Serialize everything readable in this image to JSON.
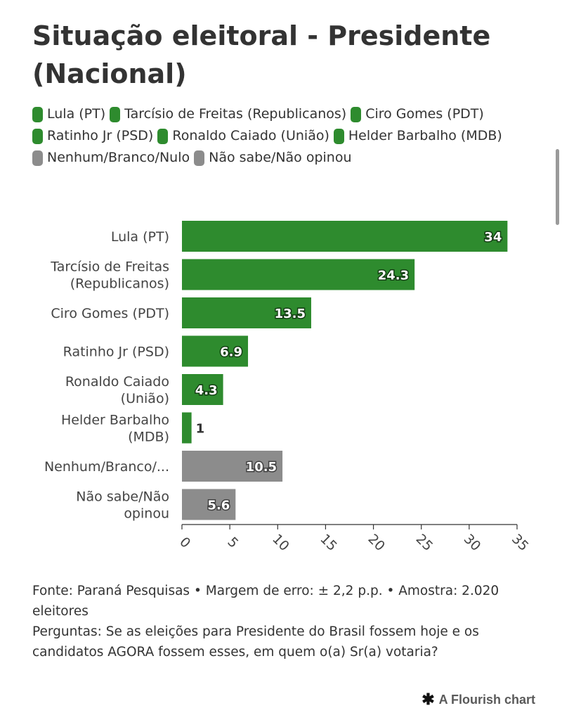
{
  "title": "Situação eleitoral - Presidente (Nacional)",
  "colors": {
    "green": "#2e8b2e",
    "gray": "#8c8c8c",
    "axis": "#333333"
  },
  "legend": [
    {
      "label": "Lula (PT)",
      "color": "#2e8b2e"
    },
    {
      "label": "Tarcísio de Freitas (Republicanos)",
      "color": "#2e8b2e"
    },
    {
      "label": "Ciro Gomes (PDT)",
      "color": "#2e8b2e"
    },
    {
      "label": "Ratinho Jr (PSD)",
      "color": "#2e8b2e"
    },
    {
      "label": "Ronaldo Caiado (União)",
      "color": "#2e8b2e"
    },
    {
      "label": "Helder Barbalho (MDB)",
      "color": "#2e8b2e"
    },
    {
      "label": "Nenhum/Branco/Nulo",
      "color": "#8c8c8c"
    },
    {
      "label": "Não sabe/Não opinou",
      "color": "#8c8c8c"
    }
  ],
  "chart_data": {
    "type": "bar",
    "orientation": "horizontal",
    "categories": [
      "Lula (PT)",
      "Tarcísio de Freitas (Republicanos)",
      "Ciro Gomes (PDT)",
      "Ratinho Jr (PSD)",
      "Ronaldo Caiado (União)",
      "Helder Barbalho (MDB)",
      "Nenhum/Branco/...",
      "Não sabe/Não opinou"
    ],
    "category_lines": [
      [
        "Lula (PT)"
      ],
      [
        "Tarcísio de Freitas",
        "(Republicanos)"
      ],
      [
        "Ciro Gomes (PDT)"
      ],
      [
        "Ratinho Jr (PSD)"
      ],
      [
        "Ronaldo Caiado",
        "(União)"
      ],
      [
        "Helder Barbalho",
        "(MDB)"
      ],
      [
        "Nenhum/Branco/..."
      ],
      [
        "Não sabe/Não",
        "opinou"
      ]
    ],
    "values": [
      34,
      24.3,
      13.5,
      6.9,
      4.3,
      1,
      10.5,
      5.6
    ],
    "value_labels": [
      "34",
      "24.3",
      "13.5",
      "6.9",
      "4.3",
      "1",
      "10.5",
      "5.6"
    ],
    "bar_colors": [
      "#2e8b2e",
      "#2e8b2e",
      "#2e8b2e",
      "#2e8b2e",
      "#2e8b2e",
      "#2e8b2e",
      "#8c8c8c",
      "#8c8c8c"
    ],
    "xlim": [
      0,
      35
    ],
    "xticks": [
      0,
      5,
      10,
      15,
      20,
      25,
      30,
      35
    ],
    "xtick_labels": [
      "0",
      "5",
      "10",
      "15",
      "20",
      "25",
      "30",
      "35"
    ],
    "grid": false,
    "legend_position": "top"
  },
  "footer": {
    "source": "Fonte: Paraná Pesquisas • Margem de erro: ± 2,2 p.p. • Amostra: 2.020 eleitores",
    "question": "Perguntas: Se as eleições para Presidente do Brasil fossem hoje e os candidatos AGORA fossem esses, em quem o(a) Sr(a) votaria?"
  },
  "credit": {
    "label": "A Flourish chart",
    "icon": "flourish-star-icon"
  }
}
